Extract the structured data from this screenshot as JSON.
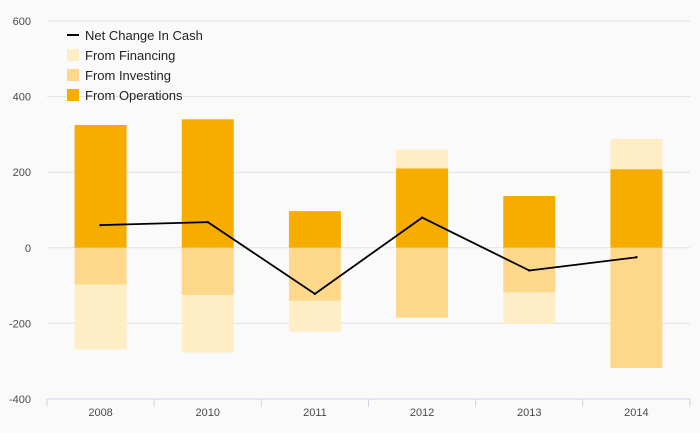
{
  "chart_data": {
    "type": "bar",
    "categories": [
      "2008",
      "2010",
      "2011",
      "2012",
      "2013",
      "2014"
    ],
    "yticks": [
      "600",
      "400",
      "200",
      "0",
      "-200",
      "-400"
    ],
    "ylim": [
      -400,
      600
    ],
    "grid": true,
    "legend_position": "top-left",
    "series": [
      {
        "name": "From Operations",
        "kind": "bar",
        "color": "#f7ac00",
        "values": [
          325,
          340,
          97,
          210,
          137,
          208
        ]
      },
      {
        "name": "From Investing",
        "kind": "bar",
        "color": "#fdd88a",
        "values": [
          -97,
          -125,
          -140,
          -185,
          -118,
          -318
        ]
      },
      {
        "name": "From Financing",
        "kind": "bar",
        "color": "#feedc5",
        "values": [
          -172,
          -152,
          -82,
          50,
          -83,
          80
        ]
      },
      {
        "name": "Net Change In Cash",
        "kind": "line",
        "color": "#000000",
        "values": [
          60,
          68,
          -122,
          80,
          -60,
          -25
        ]
      }
    ],
    "legend": [
      {
        "label": "Net Change In Cash",
        "color": "#000000",
        "kind": "line"
      },
      {
        "label": "From Financing",
        "color": "#feedc5",
        "kind": "box"
      },
      {
        "label": "From Investing",
        "color": "#fdd88a",
        "kind": "box"
      },
      {
        "label": "From Operations",
        "color": "#f7ac00",
        "kind": "box"
      }
    ]
  }
}
